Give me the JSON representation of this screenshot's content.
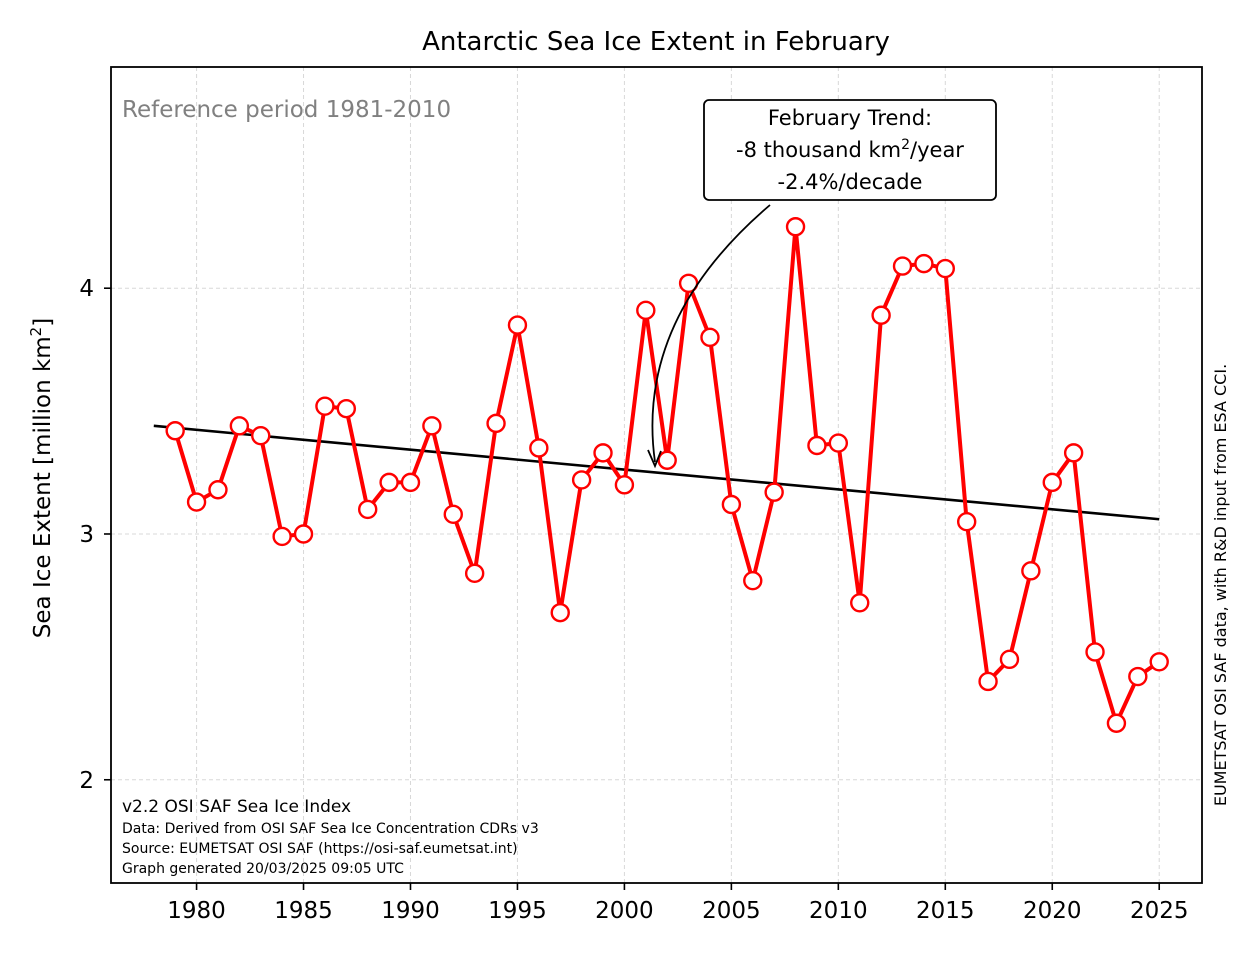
{
  "chart_data": {
    "type": "line",
    "title": "Antarctic Sea Ice Extent in February",
    "ylabel": "Sea Ice Extent [million km",
    "ylabel_sup": "2",
    "ylabel_close": "]",
    "xlim": [
      1976,
      2027
    ],
    "ylim": [
      1.58,
      4.9
    ],
    "xticks": [
      1980,
      1985,
      1990,
      1995,
      2000,
      2005,
      2010,
      2015,
      2020,
      2025
    ],
    "yticks": [
      2,
      3,
      4
    ],
    "grid": true,
    "reference_text": "Reference period 1981-2010",
    "series": [
      {
        "color": "#ff0000",
        "marker_fill": "#ffffff",
        "x": [
          1979,
          1980,
          1981,
          1982,
          1983,
          1984,
          1985,
          1986,
          1987,
          1988,
          1989,
          1990,
          1991,
          1992,
          1993,
          1994,
          1995,
          1996,
          1997,
          1998,
          1999,
          2000,
          2001,
          2002,
          2003,
          2004,
          2005,
          2006,
          2007,
          2008,
          2009,
          2010,
          2011,
          2012,
          2013,
          2014,
          2015,
          2016,
          2017,
          2018,
          2019,
          2020,
          2021,
          2022,
          2023,
          2024,
          2025
        ],
        "values": [
          3.42,
          3.13,
          3.18,
          3.44,
          3.4,
          2.99,
          3.0,
          3.52,
          3.51,
          3.1,
          3.21,
          3.21,
          3.44,
          3.08,
          2.84,
          3.45,
          3.85,
          3.35,
          2.68,
          3.22,
          3.33,
          3.2,
          3.91,
          3.3,
          4.02,
          3.8,
          3.12,
          2.81,
          3.17,
          4.25,
          3.36,
          3.37,
          2.72,
          3.89,
          4.09,
          4.1,
          4.08,
          3.05,
          2.4,
          2.49,
          2.85,
          3.21,
          3.33,
          2.52,
          2.23,
          2.42,
          2.48
        ]
      }
    ],
    "trend": {
      "color": "#000000",
      "x": [
        1978,
        2025
      ],
      "y": [
        3.44,
        3.06
      ]
    },
    "annotation": {
      "line1": "February Trend:",
      "line2_pre": "-8 thousand km",
      "line2_sup": "2",
      "line2_post": "/year",
      "line3": "-2.4%/decade",
      "arrow_target_year": 2002,
      "arrow_target_value": 3.3
    },
    "footer": {
      "version": "v2.2 OSI SAF Sea Ice Index",
      "data_line": "Data: Derived from OSI SAF Sea Ice Concentration CDRs v3",
      "source_line": "Source: EUMETSAT OSI SAF (https://osi-saf.eumetsat.int)",
      "generated_line": "Graph generated 20/03/2025 09:05 UTC"
    },
    "side_credit": "EUMETSAT OSI SAF data, with R&D input from ESA CCI."
  }
}
